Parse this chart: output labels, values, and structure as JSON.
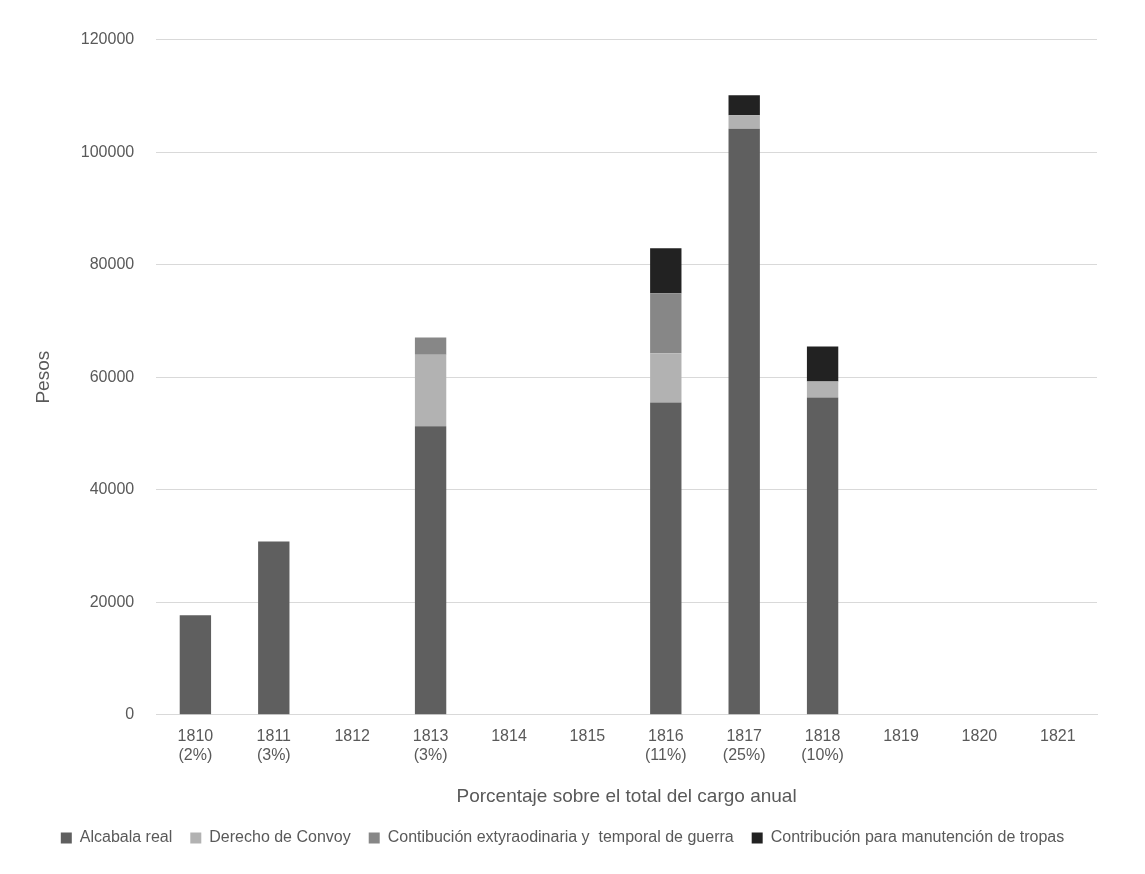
{
  "chart_data": {
    "type": "bar",
    "stacked": true,
    "xlabel": "Porcentaje sobre el total del cargo anual",
    "ylabel": "Pesos",
    "categories": [
      "1810\n(2%)",
      "1811\n(3%)",
      "1812",
      "1813\n(3%)",
      "1814",
      "1815",
      "1816\n(11%)",
      "1817\n(25%)",
      "1818\n(10%)",
      "1819",
      "1820",
      "1821"
    ],
    "series": [
      {
        "name": "Alcabala real",
        "color": "#5f5f5f",
        "values": [
          17700,
          30800,
          null,
          51300,
          null,
          null,
          55500,
          104150,
          56400,
          null,
          null,
          null
        ]
      },
      {
        "name": "Derecho de Convoy",
        "color": "#b2b2b2",
        "values": [
          null,
          null,
          null,
          12700,
          null,
          null,
          8750,
          2400,
          2850,
          null,
          null,
          null
        ]
      },
      {
        "name": "Contibución extyraodinaria y  temporal de guerra",
        "color": "#878787",
        "values": [
          null,
          null,
          null,
          3050,
          null,
          null,
          10650,
          null,
          null,
          null,
          null,
          null
        ]
      },
      {
        "name": "Contribución para manutención de tropas",
        "color": "#222222",
        "values": [
          null,
          null,
          null,
          null,
          null,
          null,
          8000,
          3550,
          6200,
          null,
          null,
          null
        ]
      }
    ],
    "ylim": [
      0,
      120000
    ],
    "yticks": [
      0,
      20000,
      40000,
      60000,
      80000,
      100000,
      120000
    ],
    "grid": "y",
    "legend": "bottom"
  }
}
